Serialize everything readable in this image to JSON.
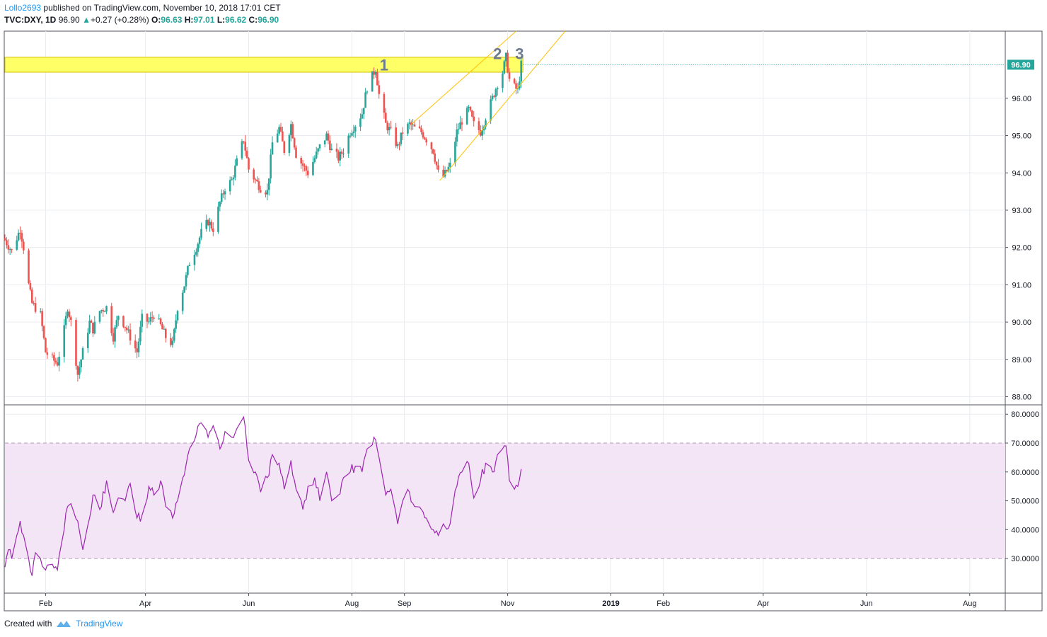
{
  "header": {
    "author": "Lollo2693",
    "published": " published on TradingView.com, November 10, 2018 17:01 CET",
    "symbol": "TVC:DXY, 1D",
    "last": "96.90",
    "change": "+0.27 (+0.28%)",
    "o_label": "O:",
    "o": "96.63",
    "h_label": "H:",
    "h": "97.01",
    "l_label": "L:",
    "l": "96.62",
    "c_label": "C:",
    "c": "96.90"
  },
  "footer": {
    "created": "Created with",
    "brand": "TradingView",
    "logo_icon": "tradingview-logo-icon"
  },
  "colors": {
    "up": "#26a69a",
    "down": "#ef5350",
    "rsi_line": "#9c27b0",
    "rsi_band": "#f3e5f5",
    "zone_fill": "#ffff66",
    "channel": "#ffc107",
    "grid": "#e9ecf0",
    "last_price_bg": "#26a69a",
    "label_text": "#6b7a8f"
  },
  "chart_data": [
    {
      "type": "candlestick",
      "symbol": "TVC:DXY",
      "interval": "1D",
      "yticks": [
        88.0,
        89.0,
        90.0,
        91.0,
        92.0,
        93.0,
        94.0,
        95.0,
        96.0
      ],
      "ytick_labels": [
        "88.00",
        "89.00",
        "90.00",
        "91.00",
        "92.00",
        "93.00",
        "94.00",
        "95.00",
        "96.00"
      ],
      "ylim": [
        87.8,
        97.8
      ],
      "last_price_label": "96.90",
      "last_price": 96.9,
      "xticks": [
        "Feb",
        "Apr",
        "Jun",
        "Aug",
        "Sep",
        "Nov",
        "2019",
        "Feb",
        "Apr",
        "Jun",
        "Aug"
      ],
      "xtick_dates": [
        "2018-02-01",
        "2018-04-01",
        "2018-06-01",
        "2018-08-01",
        "2018-09-01",
        "2018-11-01",
        "2019-01-01",
        "2019-02-01",
        "2019-04-01",
        "2019-06-01",
        "2019-08-01"
      ],
      "xlim": [
        "2018-01-08",
        "2019-08-22"
      ],
      "close_path": [
        [
          "2018-01-08",
          92.2
        ],
        [
          "2018-01-12",
          91.9
        ],
        [
          "2018-01-17",
          92.5
        ],
        [
          "2018-01-19",
          92.0
        ],
        [
          "2018-01-22",
          91.0
        ],
        [
          "2018-01-24",
          90.5
        ],
        [
          "2018-01-29",
          90.2
        ],
        [
          "2018-02-01",
          89.2
        ],
        [
          "2018-02-05",
          89.0
        ],
        [
          "2018-02-08",
          88.9
        ],
        [
          "2018-02-12",
          89.8
        ],
        [
          "2018-02-14",
          90.4
        ],
        [
          "2018-02-16",
          90.0
        ],
        [
          "2018-02-20",
          88.6
        ],
        [
          "2018-02-23",
          89.2
        ],
        [
          "2018-02-27",
          90.0
        ],
        [
          "2018-03-01",
          89.8
        ],
        [
          "2018-03-05",
          90.3
        ],
        [
          "2018-03-09",
          90.4
        ],
        [
          "2018-03-13",
          89.6
        ],
        [
          "2018-03-16",
          90.2
        ],
        [
          "2018-03-20",
          89.9
        ],
        [
          "2018-03-23",
          89.6
        ],
        [
          "2018-03-27",
          89.2
        ],
        [
          "2018-03-30",
          90.1
        ],
        [
          "2018-04-03",
          90.0
        ],
        [
          "2018-04-06",
          90.2
        ],
        [
          "2018-04-10",
          89.9
        ],
        [
          "2018-04-13",
          89.6
        ],
        [
          "2018-04-17",
          89.4
        ],
        [
          "2018-04-20",
          90.4
        ],
        [
          "2018-04-24",
          91.0
        ],
        [
          "2018-04-27",
          91.6
        ],
        [
          "2018-05-01",
          92.0
        ],
        [
          "2018-05-04",
          92.4
        ],
        [
          "2018-05-08",
          92.7
        ],
        [
          "2018-05-11",
          92.5
        ],
        [
          "2018-05-15",
          93.2
        ],
        [
          "2018-05-18",
          93.6
        ],
        [
          "2018-05-22",
          93.8
        ],
        [
          "2018-05-25",
          94.3
        ],
        [
          "2018-05-29",
          94.9
        ],
        [
          "2018-06-01",
          94.1
        ],
        [
          "2018-06-05",
          93.8
        ],
        [
          "2018-06-08",
          93.6
        ],
        [
          "2018-06-12",
          93.5
        ],
        [
          "2018-06-15",
          94.8
        ],
        [
          "2018-06-19",
          95.2
        ],
        [
          "2018-06-22",
          94.6
        ],
        [
          "2018-06-26",
          95.3
        ],
        [
          "2018-06-29",
          94.5
        ],
        [
          "2018-07-03",
          94.2
        ],
        [
          "2018-07-06",
          94.0
        ],
        [
          "2018-07-10",
          94.4
        ],
        [
          "2018-07-13",
          94.7
        ],
        [
          "2018-07-17",
          95.0
        ],
        [
          "2018-07-20",
          94.6
        ],
        [
          "2018-07-24",
          94.4
        ],
        [
          "2018-07-27",
          94.6
        ],
        [
          "2018-07-31",
          95.1
        ],
        [
          "2018-08-03",
          95.3
        ],
        [
          "2018-08-07",
          95.6
        ],
        [
          "2018-08-10",
          96.3
        ],
        [
          "2018-08-14",
          96.7
        ],
        [
          "2018-08-15",
          96.8
        ],
        [
          "2018-08-17",
          96.1
        ],
        [
          "2018-08-21",
          95.3
        ],
        [
          "2018-08-24",
          95.1
        ],
        [
          "2018-08-28",
          94.7
        ],
        [
          "2018-08-31",
          95.1
        ],
        [
          "2018-09-04",
          95.3
        ],
        [
          "2018-09-07",
          95.2
        ],
        [
          "2018-09-11",
          95.1
        ],
        [
          "2018-09-14",
          94.9
        ],
        [
          "2018-09-18",
          94.6
        ],
        [
          "2018-09-21",
          94.0
        ],
        [
          "2018-09-24",
          93.9
        ],
        [
          "2018-09-28",
          94.2
        ],
        [
          "2018-10-02",
          95.1
        ],
        [
          "2018-10-05",
          95.4
        ],
        [
          "2018-10-09",
          95.7
        ],
        [
          "2018-10-12",
          95.3
        ],
        [
          "2018-10-16",
          95.1
        ],
        [
          "2018-10-19",
          95.5
        ],
        [
          "2018-10-23",
          96.0
        ],
        [
          "2018-10-26",
          96.4
        ],
        [
          "2018-10-29",
          96.7
        ],
        [
          "2018-10-31",
          97.1
        ],
        [
          "2018-11-02",
          96.5
        ],
        [
          "2018-11-05",
          96.3
        ],
        [
          "2018-11-07",
          96.2
        ],
        [
          "2018-11-09",
          96.9
        ]
      ],
      "zone": {
        "from": "2018-01-08",
        "to": "2018-11-10",
        "low": 96.7,
        "high": 97.1,
        "color": "#ffff66"
      },
      "channel": {
        "upper": [
          [
            "2018-09-05",
            95.3
          ],
          [
            "2018-11-06",
            97.8
          ]
        ],
        "lower": [
          [
            "2018-09-22",
            93.8
          ],
          [
            "2018-12-05",
            97.8
          ]
        ]
      },
      "annotations": [
        {
          "text": "1",
          "date": "2018-08-20",
          "price": 96.9
        },
        {
          "text": "2",
          "date": "2018-10-26",
          "price": 97.2
        },
        {
          "text": "3",
          "date": "2018-11-08",
          "price": 97.2
        }
      ]
    },
    {
      "type": "line",
      "name": "",
      "yticks": [
        30,
        40,
        50,
        60,
        70,
        80
      ],
      "ytick_labels": [
        "30.0000",
        "40.0000",
        "50.0000",
        "60.0000",
        "70.0000",
        "80.0000"
      ],
      "ylim": [
        18,
        83
      ],
      "band": [
        30,
        70
      ],
      "points": [
        [
          "2018-01-08",
          27
        ],
        [
          "2018-01-10",
          33
        ],
        [
          "2018-01-12",
          30
        ],
        [
          "2018-01-15",
          38
        ],
        [
          "2018-01-17",
          43
        ],
        [
          "2018-01-19",
          38
        ],
        [
          "2018-01-22",
          30
        ],
        [
          "2018-01-24",
          24
        ],
        [
          "2018-01-26",
          32
        ],
        [
          "2018-01-29",
          30
        ],
        [
          "2018-02-01",
          26
        ],
        [
          "2018-02-05",
          28
        ],
        [
          "2018-02-08",
          26
        ],
        [
          "2018-02-12",
          40
        ],
        [
          "2018-02-14",
          48
        ],
        [
          "2018-02-16",
          49
        ],
        [
          "2018-02-20",
          43
        ],
        [
          "2018-02-23",
          33
        ],
        [
          "2018-02-27",
          44
        ],
        [
          "2018-03-01",
          52
        ],
        [
          "2018-03-05",
          47
        ],
        [
          "2018-03-09",
          57
        ],
        [
          "2018-03-13",
          46
        ],
        [
          "2018-03-16",
          51
        ],
        [
          "2018-03-20",
          50
        ],
        [
          "2018-03-23",
          56
        ],
        [
          "2018-03-27",
          44
        ],
        [
          "2018-03-30",
          45
        ],
        [
          "2018-04-03",
          55
        ],
        [
          "2018-04-06",
          52
        ],
        [
          "2018-04-10",
          57
        ],
        [
          "2018-04-13",
          48
        ],
        [
          "2018-04-17",
          44
        ],
        [
          "2018-04-20",
          50
        ],
        [
          "2018-04-24",
          59
        ],
        [
          "2018-04-27",
          68
        ],
        [
          "2018-05-01",
          73
        ],
        [
          "2018-05-04",
          77
        ],
        [
          "2018-05-08",
          72
        ],
        [
          "2018-05-11",
          76
        ],
        [
          "2018-05-15",
          68
        ],
        [
          "2018-05-18",
          74
        ],
        [
          "2018-05-22",
          72
        ],
        [
          "2018-05-25",
          75
        ],
        [
          "2018-05-29",
          79
        ],
        [
          "2018-06-01",
          64
        ],
        [
          "2018-06-05",
          60
        ],
        [
          "2018-06-08",
          53
        ],
        [
          "2018-06-12",
          58
        ],
        [
          "2018-06-15",
          66
        ],
        [
          "2018-06-19",
          63
        ],
        [
          "2018-06-22",
          54
        ],
        [
          "2018-06-26",
          64
        ],
        [
          "2018-06-29",
          54
        ],
        [
          "2018-07-03",
          47
        ],
        [
          "2018-07-06",
          55
        ],
        [
          "2018-07-10",
          58
        ],
        [
          "2018-07-13",
          50
        ],
        [
          "2018-07-17",
          60
        ],
        [
          "2018-07-20",
          50
        ],
        [
          "2018-07-24",
          52
        ],
        [
          "2018-07-27",
          58
        ],
        [
          "2018-07-31",
          60
        ],
        [
          "2018-08-03",
          62
        ],
        [
          "2018-08-07",
          60
        ],
        [
          "2018-08-10",
          68
        ],
        [
          "2018-08-14",
          72
        ],
        [
          "2018-08-17",
          65
        ],
        [
          "2018-08-21",
          52
        ],
        [
          "2018-08-24",
          54
        ],
        [
          "2018-08-28",
          42
        ],
        [
          "2018-08-31",
          50
        ],
        [
          "2018-09-04",
          53
        ],
        [
          "2018-09-07",
          48
        ],
        [
          "2018-09-11",
          47
        ],
        [
          "2018-09-14",
          44
        ],
        [
          "2018-09-18",
          40
        ],
        [
          "2018-09-21",
          38
        ],
        [
          "2018-09-24",
          42
        ],
        [
          "2018-09-28",
          42
        ],
        [
          "2018-10-02",
          55
        ],
        [
          "2018-10-05",
          60
        ],
        [
          "2018-10-09",
          63
        ],
        [
          "2018-10-12",
          51
        ],
        [
          "2018-10-16",
          57
        ],
        [
          "2018-10-19",
          63
        ],
        [
          "2018-10-23",
          60
        ],
        [
          "2018-10-26",
          66
        ],
        [
          "2018-10-29",
          68
        ],
        [
          "2018-10-31",
          69
        ],
        [
          "2018-11-02",
          57
        ],
        [
          "2018-11-05",
          54
        ],
        [
          "2018-11-07",
          55
        ],
        [
          "2018-11-09",
          61
        ]
      ]
    }
  ]
}
